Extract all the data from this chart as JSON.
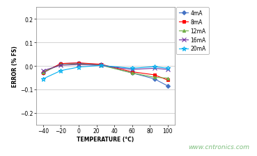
{
  "temperature": [
    -40,
    -20,
    0,
    25,
    60,
    85,
    100
  ],
  "series_order": [
    "4mA",
    "8mA",
    "12mA",
    "16mA",
    "20mA"
  ],
  "series": {
    "4mA": {
      "values": [
        -0.03,
        0.01,
        0.012,
        0.005,
        -0.03,
        -0.055,
        -0.085
      ],
      "color": "#4472C4",
      "marker": "D",
      "markersize": 3,
      "label": "4mA"
    },
    "8mA": {
      "values": [
        -0.028,
        0.01,
        0.013,
        0.007,
        -0.025,
        -0.038,
        -0.06
      ],
      "color": "#FF0000",
      "marker": "s",
      "markersize": 3,
      "label": "8mA"
    },
    "12mA": {
      "values": [
        -0.025,
        0.005,
        0.008,
        0.003,
        -0.03,
        -0.048,
        -0.052
      ],
      "color": "#70AD47",
      "marker": "^",
      "markersize": 3,
      "label": "12mA"
    },
    "16mA": {
      "values": [
        -0.02,
        0.003,
        0.006,
        0.002,
        -0.015,
        -0.01,
        -0.015
      ],
      "color": "#7030A0",
      "marker": "x",
      "markersize": 4,
      "label": "16mA"
    },
    "20mA": {
      "values": [
        -0.055,
        -0.02,
        -0.005,
        0.002,
        -0.01,
        -0.003,
        -0.01
      ],
      "color": "#00B0F0",
      "marker": "*",
      "markersize": 5,
      "label": "20mA"
    }
  },
  "xlabel": "TEMPERATURE (°C)",
  "ylabel": "ERROR (% FS)",
  "xlim": [
    -48,
    108
  ],
  "ylim": [
    -0.25,
    0.25
  ],
  "xticks": [
    -40,
    -20,
    0,
    20,
    40,
    60,
    80,
    100
  ],
  "yticks": [
    -0.2,
    -0.1,
    0.0,
    0.1,
    0.2
  ],
  "watermark": "www.cntronics.com",
  "watermark_color": "#7FBF7F",
  "background_color": "#FFFFFF",
  "plot_bg_color": "#FFFFFF",
  "grid_color": "#C0C0C0",
  "spine_color": "#808080"
}
